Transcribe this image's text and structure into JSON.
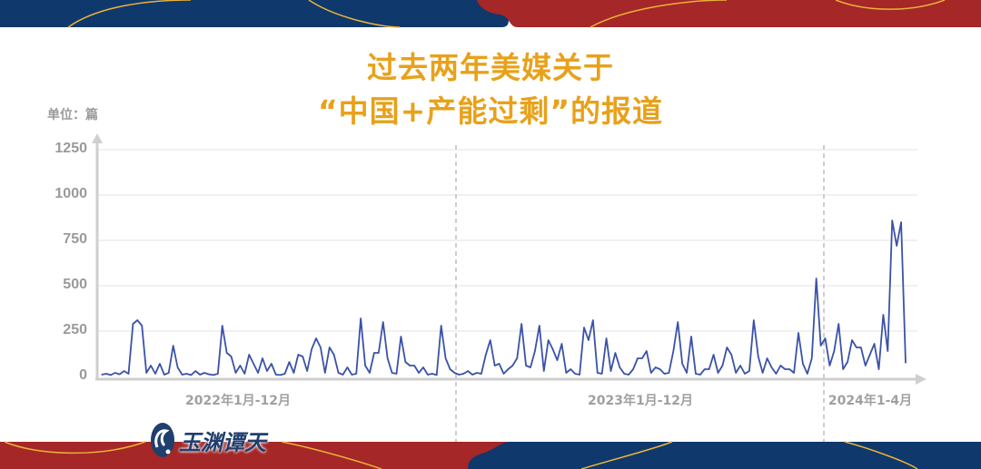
{
  "title_line1": "过去两年美媒关于",
  "title_line2": "“中国+产能过剩”的报道",
  "unit_label": "单位：篇",
  "logo_text": "玉渊谭天",
  "colors": {
    "title": "#E8A11A",
    "line": "#3A52A8",
    "band_blue": "#0F386C",
    "band_red": "#A52727",
    "arc_gold": "#E8B23A"
  },
  "chart_data": {
    "type": "line",
    "title": "过去两年美媒关于“中国+产能过剩”的报道",
    "ylabel": "单位：篇",
    "ylim": [
      0,
      1250
    ],
    "yticks": [
      "0",
      "250",
      "500",
      "750",
      "1000",
      "1250"
    ],
    "x_range": [
      "2022-01",
      "2024-04"
    ],
    "period_labels": [
      "2022年1月-12月",
      "2023年1月-12月",
      "2024年1-4月"
    ],
    "grid": true,
    "legend": "none",
    "values": [
      10,
      15,
      8,
      20,
      12,
      30,
      15,
      290,
      310,
      280,
      20,
      60,
      15,
      70,
      10,
      20,
      170,
      50,
      10,
      15,
      8,
      30,
      10,
      20,
      12,
      8,
      15,
      280,
      130,
      110,
      20,
      60,
      15,
      120,
      70,
      20,
      100,
      30,
      70,
      10,
      8,
      15,
      80,
      20,
      120,
      110,
      30,
      150,
      210,
      160,
      20,
      160,
      120,
      20,
      10,
      50,
      10,
      15,
      320,
      60,
      20,
      130,
      130,
      300,
      100,
      20,
      15,
      220,
      80,
      60,
      60,
      20,
      50,
      10,
      15,
      8,
      280,
      100,
      40,
      20,
      10,
      15,
      30,
      10,
      20,
      15,
      120,
      200,
      60,
      70,
      15,
      40,
      60,
      100,
      290,
      60,
      50,
      140,
      280,
      30,
      200,
      150,
      90,
      180,
      20,
      40,
      15,
      10,
      270,
      200,
      310,
      20,
      15,
      210,
      30,
      130,
      50,
      15,
      10,
      40,
      100,
      100,
      140,
      20,
      50,
      40,
      15,
      20,
      140,
      300,
      70,
      20,
      220,
      15,
      10,
      40,
      40,
      120,
      20,
      60,
      160,
      120,
      20,
      60,
      15,
      30,
      310,
      110,
      20,
      100,
      50,
      15,
      60,
      40,
      40,
      20,
      240,
      70,
      15,
      100,
      540,
      170,
      210,
      60,
      140,
      290,
      40,
      80,
      200,
      160,
      160,
      60,
      120,
      180,
      40,
      340,
      140,
      860,
      720,
      850,
      75
    ]
  }
}
